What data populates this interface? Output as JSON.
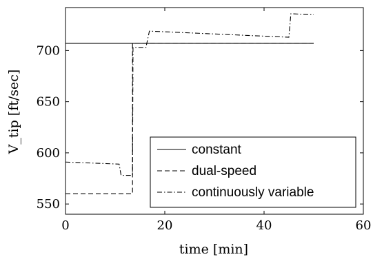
{
  "chart_data": {
    "type": "line",
    "xlabel": "time [min]",
    "ylabel": "V_tip [ft/sec]",
    "xlim": [
      0,
      60
    ],
    "ylim": [
      540,
      742
    ],
    "x_ticks": [
      0,
      20,
      40,
      60
    ],
    "y_ticks": [
      550,
      600,
      650,
      700
    ],
    "grid": false,
    "legend_position": "bottom-right",
    "series": [
      {
        "name": "constant",
        "style": "solid",
        "x": [
          0,
          50
        ],
        "y": [
          707,
          707
        ]
      },
      {
        "name": "dual-speed",
        "style": "dashed",
        "x": [
          0,
          13.5,
          13.5,
          50
        ],
        "y": [
          560,
          560,
          707,
          707
        ]
      },
      {
        "name": "continuously variable",
        "style": "dashdot",
        "x": [
          0,
          10.8,
          11.2,
          13.5,
          13.6,
          16.2,
          16.9,
          45,
          45.4,
          50
        ],
        "y": [
          591,
          589,
          578,
          578,
          703,
          703,
          719,
          713,
          736,
          735
        ]
      }
    ]
  }
}
